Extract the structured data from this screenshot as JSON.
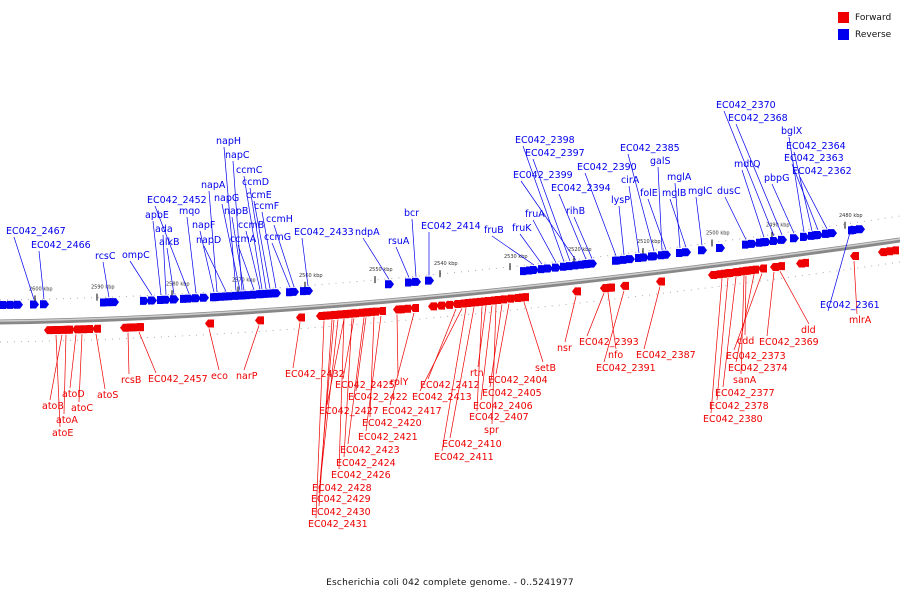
{
  "legend": {
    "forward_label": "Forward",
    "reverse_label": "Reverse",
    "forward_color": "#ee0000",
    "reverse_color": "#0000ee"
  },
  "caption": "Escherichia coli 042 complete genome. - 0..5241977",
  "ruler_ticks": [
    "2600 kbp",
    "2590 kbp",
    "2580 kbp",
    "2570 kbp",
    "2560 kbp",
    "2550 kbp",
    "2540 kbp",
    "2530 kbp",
    "2520 kbp",
    "2510 kbp",
    "2500 kbp",
    "2490 kbp",
    "2480 kbp"
  ],
  "reverse_genes": [
    "EC042_2467",
    "EC042_2466",
    "rcsC",
    "ompC",
    "apbE",
    "ada",
    "alkB",
    "EC042_2452",
    "mqo",
    "napH",
    "napC",
    "napA",
    "napG",
    "napF",
    "napB",
    "napD",
    "ccmC",
    "ccmD",
    "ccmE",
    "ccmF",
    "ccmA",
    "ccmB",
    "ccmH",
    "ccmG",
    "EC042_2433",
    "ndpA",
    "bcr",
    "rsuA",
    "EC042_2414",
    "fruB",
    "fruK",
    "fruA",
    "EC042_2398",
    "EC042_2397",
    "EC042_2399",
    "EC042_2394",
    "rihB",
    "EC042_2390",
    "lysP",
    "cirA",
    "EC042_2385",
    "galS",
    "folE",
    "mglA",
    "mglB",
    "mglC",
    "dusC",
    "EC042_2370",
    "EC042_2368",
    "mdtQ",
    "bglX",
    "pbpG",
    "EC042_2364",
    "EC042_2363",
    "EC042_2362",
    "EC042_2361"
  ],
  "forward_genes": [
    "atoB",
    "atoD",
    "atoA",
    "atoC",
    "atoE",
    "atoS",
    "rcsB",
    "EC042_2457",
    "eco",
    "narP",
    "EC042_2432",
    "EC042_2425",
    "EC042_2422",
    "rplY",
    "EC042_2427",
    "EC042_2417",
    "EC042_2420",
    "EC042_2421",
    "EC042_2423",
    "EC042_2424",
    "EC042_2426",
    "EC042_2428",
    "EC042_2429",
    "EC042_2430",
    "EC042_2431",
    "EC042_2412",
    "EC042_2413",
    "rtn",
    "EC042_2404",
    "EC042_2405",
    "EC042_2406",
    "EC042_2407",
    "spr",
    "EC042_2410",
    "EC042_2411",
    "setB",
    "nsr",
    "EC042_2393",
    "nfo",
    "EC042_2391",
    "EC042_2387",
    "cdd",
    "EC042_2373",
    "EC042_2374",
    "sanA",
    "EC042_2377",
    "EC042_2378",
    "EC042_2380",
    "EC042_2369",
    "dld",
    "mlrA"
  ]
}
